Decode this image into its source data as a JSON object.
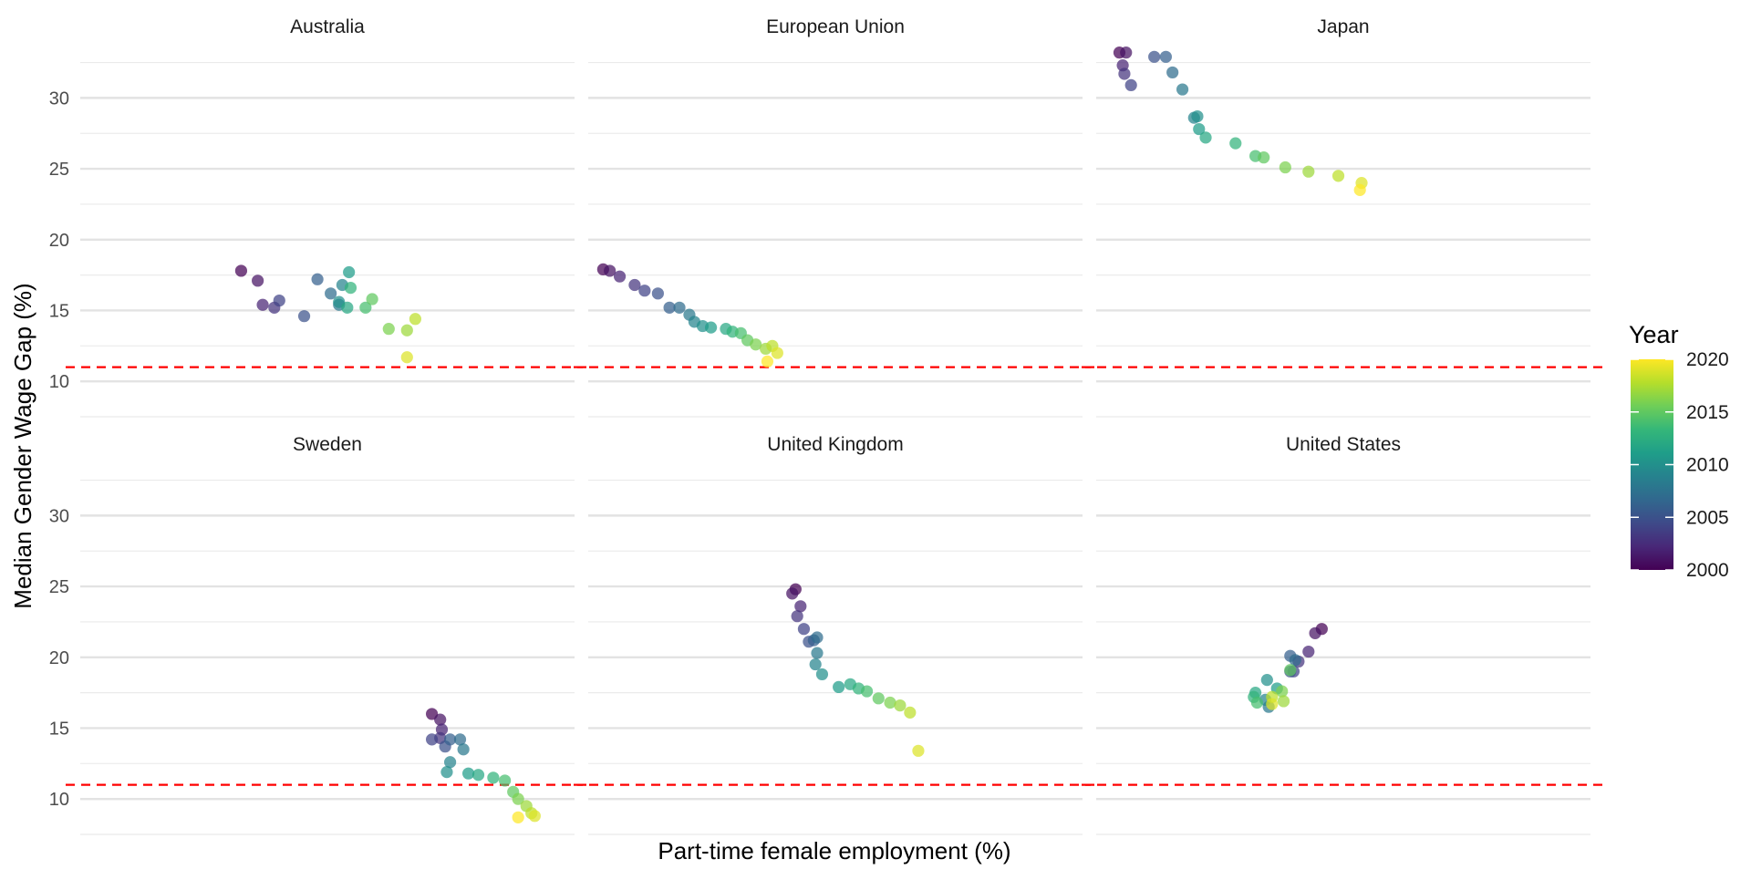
{
  "chart_data": {
    "type": "scatter",
    "facet_layout": "2 rows x 3 columns, shared axes",
    "xlabel": "Part-time female employment (%)",
    "ylabel": "Median Gender Wage Gap (%)",
    "x_ticks_shown": false,
    "ylim": [
      7.5,
      33.5
    ],
    "y_ticks": [
      10,
      15,
      20,
      25,
      30
    ],
    "y_tick_labels": [
      "10",
      "15",
      "20",
      "25",
      "30"
    ],
    "xlim": [
      14.6,
      44.4
    ],
    "reference_line": {
      "y": 11,
      "style": "dashed",
      "color": "#ff0000"
    },
    "grid": "horizontal major and minor",
    "legend": {
      "title": "Year",
      "type": "continuous colorbar",
      "placement": "right",
      "min": 2000,
      "max": 2020,
      "ticks": [
        2000,
        2005,
        2010,
        2015,
        2020
      ],
      "tick_labels": [
        "2000",
        "2005",
        "2010",
        "2015",
        "2020"
      ],
      "palette": [
        "#440154",
        "#482878",
        "#3e4a89",
        "#31688e",
        "#26828e",
        "#1f9e89",
        "#35b779",
        "#6ece58",
        "#b5de2b",
        "#fde725"
      ]
    },
    "point_alpha": 0.72,
    "panels": [
      {
        "name": "Australia",
        "points": [
          {
            "year": 2000,
            "x": 24.3,
            "y": 17.8
          },
          {
            "year": 2001,
            "x": 25.3,
            "y": 17.1
          },
          {
            "year": 2002,
            "x": 25.6,
            "y": 15.4
          },
          {
            "year": 2003,
            "x": 26.3,
            "y": 15.2
          },
          {
            "year": 2004,
            "x": 26.6,
            "y": 15.7
          },
          {
            "year": 2005,
            "x": 28.1,
            "y": 14.6
          },
          {
            "year": 2006,
            "x": 28.9,
            "y": 17.2
          },
          {
            "year": 2007,
            "x": 29.7,
            "y": 16.2
          },
          {
            "year": 2008,
            "x": 30.2,
            "y": 15.4
          },
          {
            "year": 2009,
            "x": 30.4,
            "y": 16.8
          },
          {
            "year": 2010,
            "x": 30.2,
            "y": 15.6
          },
          {
            "year": 2011,
            "x": 30.8,
            "y": 17.7
          },
          {
            "year": 2012,
            "x": 30.7,
            "y": 15.2
          },
          {
            "year": 2013,
            "x": 30.9,
            "y": 16.6
          },
          {
            "year": 2014,
            "x": 31.8,
            "y": 15.2
          },
          {
            "year": 2015,
            "x": 32.2,
            "y": 15.8
          },
          {
            "year": 2016,
            "x": 33.2,
            "y": 13.7
          },
          {
            "year": 2017,
            "x": 34.3,
            "y": 13.6
          },
          {
            "year": 2018,
            "x": 34.8,
            "y": 14.4
          },
          {
            "year": 2019,
            "x": 34.3,
            "y": 11.7
          }
        ]
      },
      {
        "name": "European Union",
        "points": [
          {
            "year": 2000,
            "x": 15.5,
            "y": 17.9
          },
          {
            "year": 2001,
            "x": 15.9,
            "y": 17.8
          },
          {
            "year": 2002,
            "x": 16.5,
            "y": 17.4
          },
          {
            "year": 2003,
            "x": 17.4,
            "y": 16.8
          },
          {
            "year": 2004,
            "x": 18.0,
            "y": 16.4
          },
          {
            "year": 2005,
            "x": 18.8,
            "y": 16.2
          },
          {
            "year": 2006,
            "x": 19.5,
            "y": 15.2
          },
          {
            "year": 2007,
            "x": 20.1,
            "y": 15.2
          },
          {
            "year": 2008,
            "x": 20.7,
            "y": 14.7
          },
          {
            "year": 2009,
            "x": 21.0,
            "y": 14.2
          },
          {
            "year": 2010,
            "x": 21.5,
            "y": 13.9
          },
          {
            "year": 2011,
            "x": 22.0,
            "y": 13.8
          },
          {
            "year": 2012,
            "x": 22.9,
            "y": 13.7
          },
          {
            "year": 2013,
            "x": 23.3,
            "y": 13.5
          },
          {
            "year": 2014,
            "x": 23.8,
            "y": 13.4
          },
          {
            "year": 2015,
            "x": 24.2,
            "y": 12.9
          },
          {
            "year": 2016,
            "x": 24.7,
            "y": 12.6
          },
          {
            "year": 2017,
            "x": 25.3,
            "y": 12.3
          },
          {
            "year": 2018,
            "x": 25.7,
            "y": 12.5
          },
          {
            "year": 2019,
            "x": 26.0,
            "y": 12.0
          },
          {
            "year": 2020,
            "x": 25.4,
            "y": 11.4
          }
        ]
      },
      {
        "name": "Japan",
        "points": [
          {
            "year": 2000,
            "x": 16.0,
            "y": 33.2
          },
          {
            "year": 2001,
            "x": 16.4,
            "y": 33.2
          },
          {
            "year": 2002,
            "x": 16.2,
            "y": 32.3
          },
          {
            "year": 2003,
            "x": 16.3,
            "y": 31.7
          },
          {
            "year": 2004,
            "x": 16.7,
            "y": 30.9
          },
          {
            "year": 2005,
            "x": 18.1,
            "y": 32.9
          },
          {
            "year": 2006,
            "x": 18.8,
            "y": 32.9
          },
          {
            "year": 2007,
            "x": 19.2,
            "y": 31.8
          },
          {
            "year": 2008,
            "x": 19.8,
            "y": 30.6
          },
          {
            "year": 2009,
            "x": 20.5,
            "y": 28.6
          },
          {
            "year": 2010,
            "x": 20.7,
            "y": 28.7
          },
          {
            "year": 2011,
            "x": 20.8,
            "y": 27.8
          },
          {
            "year": 2012,
            "x": 21.2,
            "y": 27.2
          },
          {
            "year": 2013,
            "x": 23.0,
            "y": 26.8
          },
          {
            "year": 2014,
            "x": 24.2,
            "y": 25.9
          },
          {
            "year": 2015,
            "x": 24.7,
            "y": 25.8
          },
          {
            "year": 2016,
            "x": 26.0,
            "y": 25.1
          },
          {
            "year": 2017,
            "x": 27.4,
            "y": 24.8
          },
          {
            "year": 2018,
            "x": 29.2,
            "y": 24.5
          },
          {
            "year": 2019,
            "x": 30.6,
            "y": 24.0
          },
          {
            "year": 2020,
            "x": 30.5,
            "y": 23.5
          }
        ]
      },
      {
        "name": "Sweden",
        "points": [
          {
            "year": 2000,
            "x": 35.8,
            "y": 16.0
          },
          {
            "year": 2001,
            "x": 36.3,
            "y": 15.6
          },
          {
            "year": 2002,
            "x": 36.4,
            "y": 14.9
          },
          {
            "year": 2003,
            "x": 36.3,
            "y": 14.3
          },
          {
            "year": 2004,
            "x": 35.8,
            "y": 14.2
          },
          {
            "year": 2005,
            "x": 36.6,
            "y": 13.7
          },
          {
            "year": 2006,
            "x": 36.9,
            "y": 14.2
          },
          {
            "year": 2007,
            "x": 37.5,
            "y": 14.2
          },
          {
            "year": 2008,
            "x": 37.7,
            "y": 13.5
          },
          {
            "year": 2009,
            "x": 36.9,
            "y": 12.6
          },
          {
            "year": 2010,
            "x": 36.7,
            "y": 11.9
          },
          {
            "year": 2011,
            "x": 38.0,
            "y": 11.8
          },
          {
            "year": 2012,
            "x": 38.6,
            "y": 11.7
          },
          {
            "year": 2013,
            "x": 39.5,
            "y": 11.5
          },
          {
            "year": 2014,
            "x": 40.2,
            "y": 11.3
          },
          {
            "year": 2015,
            "x": 40.7,
            "y": 10.5
          },
          {
            "year": 2016,
            "x": 41.0,
            "y": 10.0
          },
          {
            "year": 2017,
            "x": 41.5,
            "y": 9.5
          },
          {
            "year": 2018,
            "x": 41.8,
            "y": 9.0
          },
          {
            "year": 2019,
            "x": 42.0,
            "y": 8.8
          },
          {
            "year": 2020,
            "x": 41.0,
            "y": 8.7
          }
        ]
      },
      {
        "name": "United Kingdom",
        "points": [
          {
            "year": 2000,
            "x": 27.1,
            "y": 24.8
          },
          {
            "year": 2001,
            "x": 26.9,
            "y": 24.5
          },
          {
            "year": 2002,
            "x": 27.4,
            "y": 23.6
          },
          {
            "year": 2003,
            "x": 27.2,
            "y": 22.9
          },
          {
            "year": 2004,
            "x": 27.6,
            "y": 22.0
          },
          {
            "year": 2005,
            "x": 27.9,
            "y": 21.1
          },
          {
            "year": 2006,
            "x": 28.2,
            "y": 21.2
          },
          {
            "year": 2007,
            "x": 28.4,
            "y": 21.4
          },
          {
            "year": 2008,
            "x": 28.4,
            "y": 20.3
          },
          {
            "year": 2009,
            "x": 28.3,
            "y": 19.5
          },
          {
            "year": 2010,
            "x": 28.7,
            "y": 18.8
          },
          {
            "year": 2011,
            "x": 29.7,
            "y": 17.9
          },
          {
            "year": 2012,
            "x": 30.4,
            "y": 18.1
          },
          {
            "year": 2013,
            "x": 30.9,
            "y": 17.8
          },
          {
            "year": 2014,
            "x": 31.4,
            "y": 17.6
          },
          {
            "year": 2015,
            "x": 32.1,
            "y": 17.1
          },
          {
            "year": 2016,
            "x": 32.8,
            "y": 16.8
          },
          {
            "year": 2017,
            "x": 33.4,
            "y": 16.6
          },
          {
            "year": 2018,
            "x": 34.0,
            "y": 16.1
          },
          {
            "year": 2019,
            "x": 34.5,
            "y": 13.4
          }
        ]
      },
      {
        "name": "United States",
        "points": [
          {
            "year": 2000,
            "x": 28.2,
            "y": 22.0
          },
          {
            "year": 2001,
            "x": 27.8,
            "y": 21.7
          },
          {
            "year": 2002,
            "x": 27.4,
            "y": 20.4
          },
          {
            "year": 2003,
            "x": 26.8,
            "y": 19.7
          },
          {
            "year": 2004,
            "x": 26.5,
            "y": 19.0
          },
          {
            "year": 2005,
            "x": 26.3,
            "y": 19.0
          },
          {
            "year": 2006,
            "x": 26.3,
            "y": 20.1
          },
          {
            "year": 2007,
            "x": 26.6,
            "y": 19.8
          },
          {
            "year": 2008,
            "x": 25.0,
            "y": 16.5
          },
          {
            "year": 2009,
            "x": 24.8,
            "y": 17.0
          },
          {
            "year": 2010,
            "x": 24.9,
            "y": 18.4
          },
          {
            "year": 2011,
            "x": 25.5,
            "y": 17.8
          },
          {
            "year": 2012,
            "x": 24.2,
            "y": 17.5
          },
          {
            "year": 2013,
            "x": 24.1,
            "y": 17.2
          },
          {
            "year": 2014,
            "x": 24.3,
            "y": 16.8
          },
          {
            "year": 2015,
            "x": 26.3,
            "y": 19.1
          },
          {
            "year": 2016,
            "x": 25.8,
            "y": 17.6
          },
          {
            "year": 2017,
            "x": 25.9,
            "y": 16.9
          },
          {
            "year": 2018,
            "x": 25.2,
            "y": 17.2
          },
          {
            "year": 2019,
            "x": 25.2,
            "y": 16.7
          }
        ]
      }
    ]
  }
}
